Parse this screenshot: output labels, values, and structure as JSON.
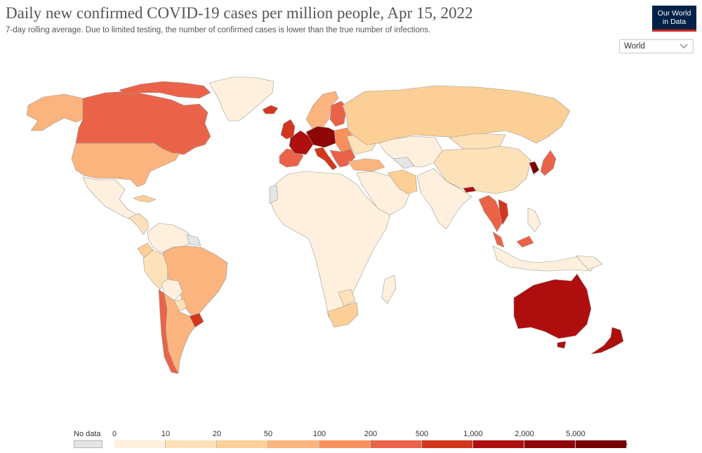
{
  "header": {
    "title": "Daily new confirmed COVID-19 cases per million people, Apr 15, 2022",
    "subtitle": "7-day rolling average. Due to limited testing, the number of confirmed cases is lower than the true number of infections.",
    "logo_line1": "Our World",
    "logo_line2": "in Data"
  },
  "controls": {
    "region_select_value": "World",
    "region_select_icon": "chevron-down-icon"
  },
  "legend": {
    "no_data_label": "No data",
    "no_data_color": "#e5e5e5",
    "bins": [
      {
        "from": "0",
        "to": "10",
        "color": "#fef0dc"
      },
      {
        "from": "10",
        "to": "20",
        "color": "#fde1b8"
      },
      {
        "from": "20",
        "to": "50",
        "color": "#fccf96"
      },
      {
        "from": "50",
        "to": "100",
        "color": "#fbb47d"
      },
      {
        "from": "100",
        "to": "200",
        "color": "#f7905c"
      },
      {
        "from": "200",
        "to": "500",
        "color": "#ea6349"
      },
      {
        "from": "500",
        "to": "1,000",
        "color": "#d2371e"
      },
      {
        "from": "1,000",
        "to": "2,000",
        "color": "#ae0e0e"
      },
      {
        "from": "2,000",
        "to": "5,000",
        "color": "#8f0606"
      },
      {
        "from": "5,000",
        "to": "",
        "color": "#770000"
      }
    ],
    "tick_labels": [
      "0",
      "10",
      "20",
      "50",
      "100",
      "200",
      "500",
      "1,000",
      "2,000",
      "5,000"
    ]
  },
  "map": {
    "ocean_color": "#ffffff",
    "border_color": "#9c9c9c",
    "regions": [
      {
        "name": "alaska",
        "color": "#fbb47d"
      },
      {
        "name": "canada",
        "color": "#ea6349"
      },
      {
        "name": "canada-arctic-islands",
        "color": "#ea6349"
      },
      {
        "name": "greenland",
        "color": "#fef0dc"
      },
      {
        "name": "united-states",
        "color": "#fbb47d"
      },
      {
        "name": "mexico",
        "color": "#fef0dc"
      },
      {
        "name": "central-america",
        "color": "#fde1b8"
      },
      {
        "name": "cuba",
        "color": "#fccf96"
      },
      {
        "name": "colombia-venezuela",
        "color": "#fef0dc"
      },
      {
        "name": "guianas",
        "color": "#e5e5e5"
      },
      {
        "name": "ecuador",
        "color": "#fccf96"
      },
      {
        "name": "peru",
        "color": "#fde1b8"
      },
      {
        "name": "brazil",
        "color": "#fbb47d"
      },
      {
        "name": "bolivia",
        "color": "#fef0dc"
      },
      {
        "name": "paraguay",
        "color": "#fde1b8"
      },
      {
        "name": "chile",
        "color": "#ea6349"
      },
      {
        "name": "argentina",
        "color": "#fbb47d"
      },
      {
        "name": "uruguay",
        "color": "#d2371e"
      },
      {
        "name": "iceland",
        "color": "#d2371e"
      },
      {
        "name": "uk-ireland",
        "color": "#d2371e"
      },
      {
        "name": "scandinavia",
        "color": "#fbb47d"
      },
      {
        "name": "finland",
        "color": "#ea6349"
      },
      {
        "name": "iberia",
        "color": "#ea6349"
      },
      {
        "name": "france",
        "color": "#ae0e0e"
      },
      {
        "name": "central-europe",
        "color": "#8f0606"
      },
      {
        "name": "italy",
        "color": "#d2371e"
      },
      {
        "name": "eastern-europe",
        "color": "#f7905c"
      },
      {
        "name": "balkans",
        "color": "#ea6349"
      },
      {
        "name": "ukraine",
        "color": "#fde1b8"
      },
      {
        "name": "turkey",
        "color": "#fbb47d"
      },
      {
        "name": "russia",
        "color": "#fccf96"
      },
      {
        "name": "kazakhstan-central-asia",
        "color": "#fef0dc"
      },
      {
        "name": "turkmenistan",
        "color": "#e5e5e5"
      },
      {
        "name": "mongolia",
        "color": "#fde1b8"
      },
      {
        "name": "china",
        "color": "#fde1b8"
      },
      {
        "name": "korea",
        "color": "#770000"
      },
      {
        "name": "japan",
        "color": "#ea6349"
      },
      {
        "name": "middle-east",
        "color": "#fef0dc"
      },
      {
        "name": "iran",
        "color": "#fccf96"
      },
      {
        "name": "south-asia",
        "color": "#fef0dc"
      },
      {
        "name": "nepal-bhutan",
        "color": "#ae0e0e"
      },
      {
        "name": "mainland-southeast-asia",
        "color": "#ea6349"
      },
      {
        "name": "vietnam",
        "color": "#d2371e"
      },
      {
        "name": "malaysia",
        "color": "#ea6349"
      },
      {
        "name": "indonesia",
        "color": "#fef0dc"
      },
      {
        "name": "philippines",
        "color": "#fef0dc"
      },
      {
        "name": "papua-new-guinea",
        "color": "#fef0dc"
      },
      {
        "name": "africa",
        "color": "#fef0dc"
      },
      {
        "name": "western-sahara",
        "color": "#e5e5e5"
      },
      {
        "name": "botswana",
        "color": "#fde1b8"
      },
      {
        "name": "south-africa",
        "color": "#fccf96"
      },
      {
        "name": "madagascar",
        "color": "#fef0dc"
      },
      {
        "name": "australia",
        "color": "#ae0e0e"
      },
      {
        "name": "tasmania",
        "color": "#ae0e0e"
      },
      {
        "name": "new-zealand",
        "color": "#ae0e0e"
      }
    ]
  }
}
